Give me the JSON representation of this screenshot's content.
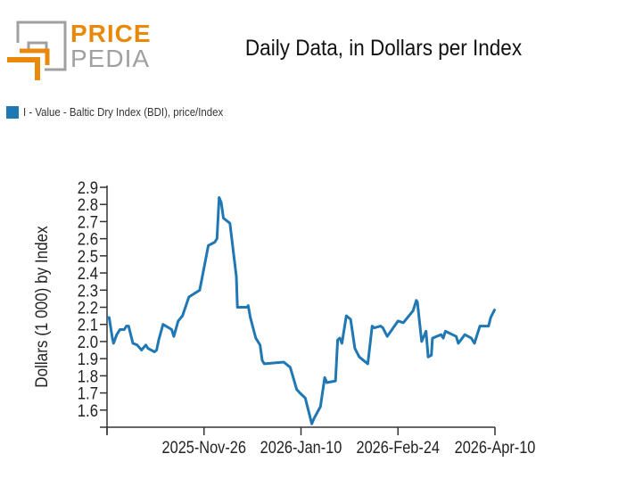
{
  "logo": {
    "line1": "PRICE",
    "line2": "PEDIA",
    "colors": {
      "orange": "#E8890C",
      "gray": "#A0A0A0"
    }
  },
  "chart_data": {
    "type": "line",
    "title": "Daily Data, in Dollars per Index",
    "xlabel": "",
    "ylabel": "Dollars (1 000) by Index",
    "ylim": [
      1.5,
      2.9
    ],
    "xlim": [
      0,
      180
    ],
    "x_unit": "days",
    "yticks": [
      1.6,
      1.7,
      1.8,
      1.9,
      2.0,
      2.1,
      2.2,
      2.3,
      2.4,
      2.5,
      2.6,
      2.7,
      2.8,
      2.9
    ],
    "yticklabels": [
      "1.6",
      "1.7",
      "1.8",
      "1.9",
      "2.0",
      "2.1",
      "2.2",
      "2.3",
      "2.4",
      "2.5",
      "2.6",
      "2.7",
      "2.8",
      "2.9"
    ],
    "xticks": [
      {
        "value": 0,
        "label": ""
      },
      {
        "value": 45,
        "label": "2025-Nov-26"
      },
      {
        "value": 90,
        "label": "2026-Jan-10"
      },
      {
        "value": 135,
        "label": "2026-Feb-24"
      },
      {
        "value": 180,
        "label": "2026-Apr-10"
      }
    ],
    "grid": false,
    "legend_position": "top-left",
    "series": [
      {
        "name": "I - Value - Baltic Dry Index (BDI), price/Index",
        "color": "#1F77B4",
        "x": [
          0,
          1,
          2.5,
          3,
          4.5,
          6,
          8,
          9,
          10,
          12,
          14,
          16,
          18,
          19,
          22,
          23,
          24,
          26,
          30,
          31,
          33,
          35,
          38,
          43,
          47,
          50,
          51,
          52,
          53,
          54,
          57,
          60,
          60.5,
          65,
          65.5,
          66.5,
          69,
          71,
          72,
          73,
          82,
          85,
          88,
          89.5,
          92,
          95,
          96,
          99,
          101,
          102,
          106,
          107,
          108,
          109,
          111,
          113,
          115,
          117,
          121,
          123,
          124,
          127,
          128,
          130,
          135,
          137.5,
          142,
          143.5,
          144,
          146,
          148,
          149,
          150.5,
          151,
          155,
          156,
          157,
          162,
          163,
          166,
          169,
          170.5,
          173,
          177,
          178,
          180
        ],
        "y": [
          2.14,
          2.14,
          2.02,
          1.99,
          2.04,
          2.07,
          2.07,
          2.09,
          2.09,
          1.99,
          1.98,
          1.95,
          1.98,
          1.96,
          1.94,
          1.95,
          2.01,
          2.1,
          2.07,
          2.03,
          2.12,
          2.15,
          2.26,
          2.3,
          2.56,
          2.58,
          2.6,
          2.84,
          2.81,
          2.72,
          2.69,
          2.38,
          2.2,
          2.2,
          2.21,
          2.14,
          2.02,
          1.98,
          1.89,
          1.87,
          1.88,
          1.85,
          1.72,
          1.7,
          1.67,
          1.52,
          1.55,
          1.62,
          1.79,
          1.76,
          1.77,
          2.01,
          2.02,
          1.99,
          2.15,
          2.13,
          1.96,
          1.91,
          1.87,
          2.09,
          2.08,
          2.09,
          2.08,
          2.03,
          2.12,
          2.11,
          2.18,
          2.24,
          2.23,
          2.0,
          2.06,
          1.91,
          1.92,
          2.02,
          2.04,
          2.02,
          2.06,
          2.03,
          1.99,
          2.04,
          2.02,
          1.99,
          2.09,
          2.09,
          2.14,
          2.19
        ]
      }
    ]
  }
}
